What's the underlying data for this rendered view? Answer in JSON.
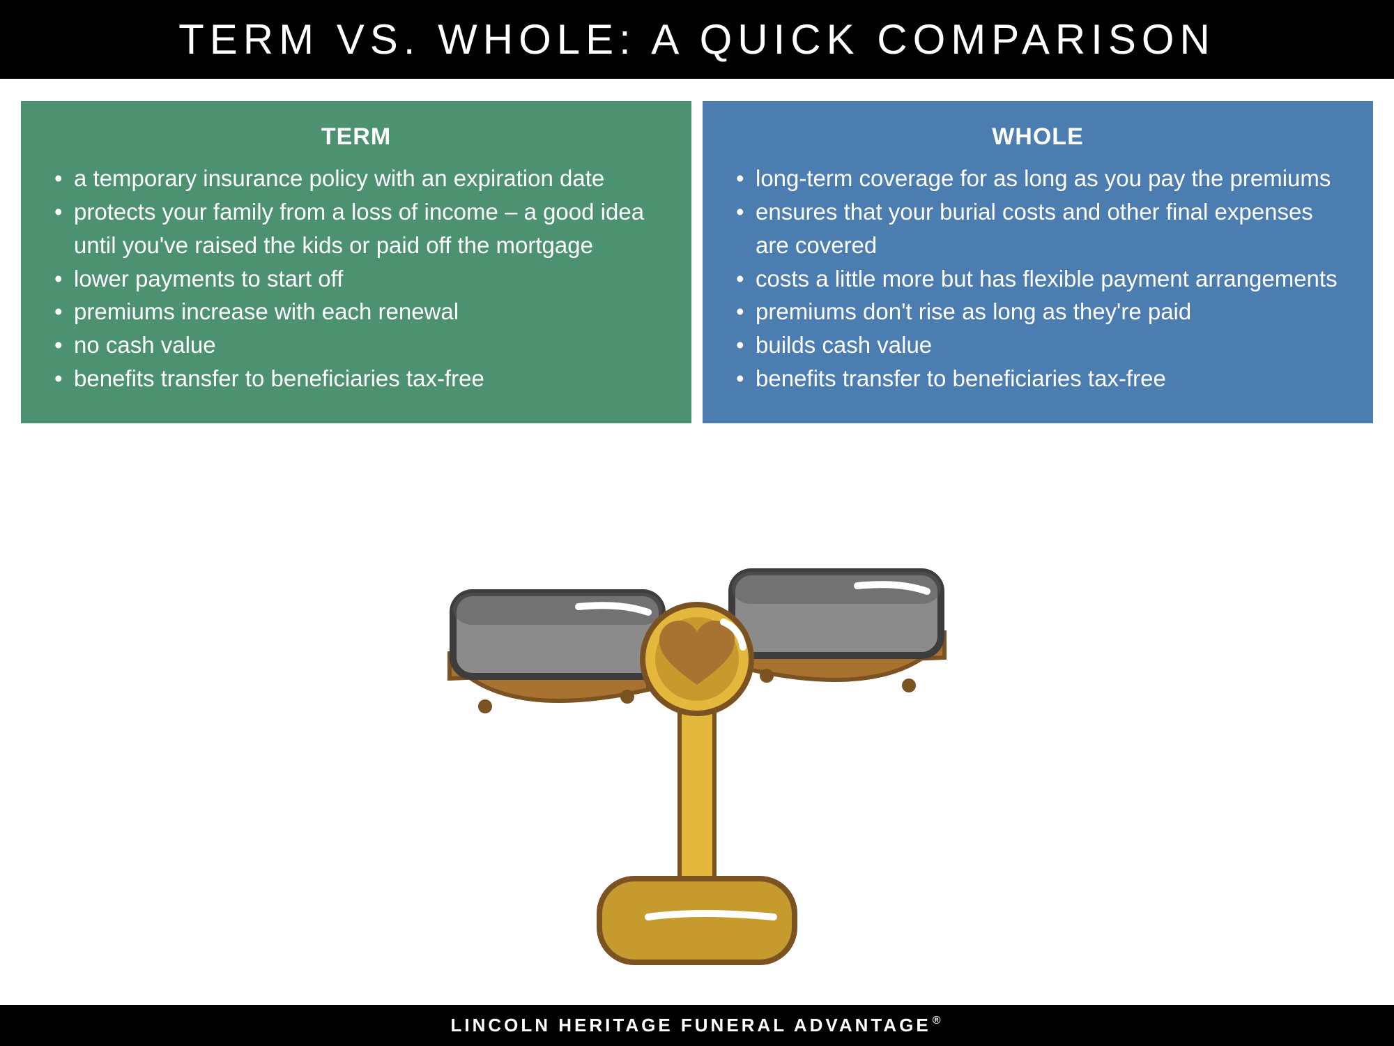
{
  "header": {
    "title": "TERM VS. WHOLE: A QUICK COMPARISON"
  },
  "cards": {
    "term": {
      "title": "TERM",
      "bg_color": "#4c9270",
      "items": [
        "a temporary insurance policy with an expiration date",
        "protects your family from a loss of income – a good idea until you've raised the kids or paid off the mortgage",
        "lower payments to start off",
        "premiums increase with each renewal",
        "no cash value",
        "benefits transfer to beneficiaries tax-free"
      ]
    },
    "whole": {
      "title": "WHOLE",
      "bg_color": "#4b7db1",
      "items": [
        "long-term coverage for as long as you pay the premiums",
        "ensures that your burial costs and other final expenses are covered",
        "costs a little more but has flexible payment arrangements",
        "premiums don't rise as long as they're paid",
        "builds cash value",
        "benefits transfer to beneficiaries tax-free"
      ]
    }
  },
  "scale": {
    "beam_color": "#a87330",
    "beam_dark": "#7b5222",
    "post_color": "#e4b83c",
    "post_highlight": "#f0d56b",
    "base_color": "#c79a2e",
    "base_dark": "#a87b1e",
    "pan_fill": "#8b8b8b",
    "pan_dark": "#595959",
    "pan_stroke": "#3d3d3d",
    "hub_outer": "#e4b83c",
    "hub_inner": "#c79a2e",
    "heart_color": "#a87330",
    "highlight": "#ffffff"
  },
  "footer": {
    "text": "LINCOLN HERITAGE FUNERAL ADVANTAGE",
    "mark": "®"
  }
}
